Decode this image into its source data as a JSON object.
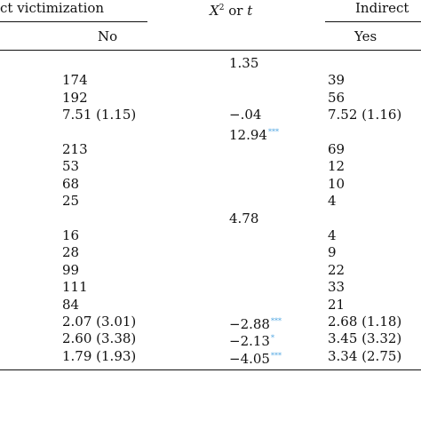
{
  "header": {
    "group_left": "ct victimization",
    "stat_var": "X",
    "stat_sup": "2",
    "stat_or": "or",
    "stat_t": "t",
    "group_right": "Indirect",
    "sub_left": "No",
    "sub_right": "Yes"
  },
  "rows": [
    {
      "no": "",
      "stat": "1.35",
      "sig": "",
      "yes": ""
    },
    {
      "no": "174",
      "stat": "",
      "sig": "",
      "yes": "39"
    },
    {
      "no": "192",
      "stat": "",
      "sig": "",
      "yes": "56"
    },
    {
      "no": "7.51 (1.15)",
      "stat": "−.04",
      "sig": "",
      "yes": "7.52 (1.16)"
    },
    {
      "no": "",
      "stat": "12.94",
      "sig": "***",
      "yes": ""
    },
    {
      "no": "213",
      "stat": "",
      "sig": "",
      "yes": "69"
    },
    {
      "no": "53",
      "stat": "",
      "sig": "",
      "yes": "12"
    },
    {
      "no": "68",
      "stat": "",
      "sig": "",
      "yes": "10"
    },
    {
      "no": "25",
      "stat": "",
      "sig": "",
      "yes": "4"
    },
    {
      "no": "",
      "stat": "4.78",
      "sig": "",
      "yes": ""
    },
    {
      "no": "16",
      "stat": "",
      "sig": "",
      "yes": "4"
    },
    {
      "no": "28",
      "stat": "",
      "sig": "",
      "yes": "9"
    },
    {
      "no": "99",
      "stat": "",
      "sig": "",
      "yes": "22"
    },
    {
      "no": "111",
      "stat": "",
      "sig": "",
      "yes": "33"
    },
    {
      "no": "84",
      "stat": "",
      "sig": "",
      "yes": "21"
    },
    {
      "no": "2.07 (3.01)",
      "stat": "−2.88",
      "sig": "***",
      "yes": "2.68 (1.18)"
    },
    {
      "no": "2.60 (3.38)",
      "stat": "−2.13",
      "sig": "*",
      "yes": "3.45 (3.32)"
    },
    {
      "no": "1.79 (1.93)",
      "stat": "−4.05",
      "sig": "***",
      "yes": "3.34 (2.75)"
    }
  ],
  "colors": {
    "text": "#111111",
    "significance": "#4aa3e0",
    "rule": "#111111"
  }
}
